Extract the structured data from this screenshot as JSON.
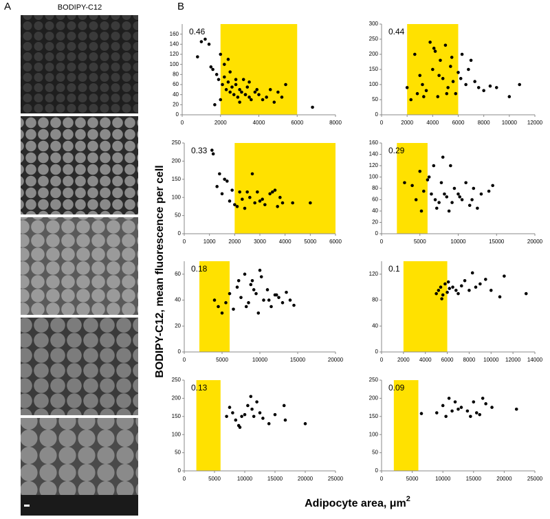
{
  "panel_labels": [
    "A",
    "B"
  ],
  "image_title": "BODIPY-C12",
  "y_label": "BODIPY-C12, mean fluorescence per cell",
  "x_label": "Adipocyte area, μm",
  "x_label_sup": "2",
  "chart_data": [
    {
      "type": "scatter",
      "annotation": "0.46",
      "color": "#000000",
      "highlight": [
        2000,
        6000
      ],
      "highlight_color": "#ffe100",
      "xlim": [
        0,
        8000
      ],
      "xticks": [
        0,
        2000,
        4000,
        6000,
        8000
      ],
      "ylim": [
        0,
        180
      ],
      "yticks": [
        0,
        20,
        40,
        60,
        80,
        100,
        120,
        140,
        160
      ],
      "x": [
        800,
        1000,
        1200,
        1400,
        1500,
        1600,
        1800,
        1900,
        2000,
        2100,
        2200,
        2300,
        2400,
        2500,
        2600,
        2700,
        2800,
        2900,
        3000,
        3100,
        3200,
        3300,
        3400,
        3500,
        3600,
        3800,
        4000,
        4200,
        4400,
        4600,
        4800,
        5000,
        5200,
        5400,
        6800,
        1700,
        2200,
        2500,
        3000,
        3500,
        2000,
        2400,
        2800,
        3300,
        3900
      ],
      "y": [
        115,
        145,
        150,
        140,
        95,
        90,
        80,
        70,
        120,
        60,
        75,
        50,
        65,
        45,
        55,
        40,
        60,
        35,
        50,
        45,
        70,
        40,
        55,
        35,
        30,
        45,
        40,
        30,
        35,
        50,
        25,
        45,
        35,
        60,
        15,
        20,
        100,
        85,
        25,
        65,
        30,
        110,
        70,
        40,
        50
      ]
    },
    {
      "type": "scatter",
      "annotation": "0.44",
      "color": "#000000",
      "highlight": [
        2000,
        6000
      ],
      "highlight_color": "#ffe100",
      "xlim": [
        0,
        12000
      ],
      "xticks": [
        0,
        2000,
        4000,
        6000,
        8000,
        10000,
        12000
      ],
      "ylim": [
        0,
        300
      ],
      "yticks": [
        0,
        50,
        100,
        150,
        200,
        250,
        300
      ],
      "x": [
        2000,
        2300,
        2600,
        2800,
        3000,
        3200,
        3500,
        3800,
        4000,
        4200,
        4400,
        4600,
        4800,
        5000,
        5200,
        5400,
        5600,
        5800,
        6000,
        6300,
        6600,
        7000,
        7300,
        7600,
        8000,
        8500,
        9000,
        10000,
        10800,
        3300,
        4100,
        4500,
        5100,
        5500,
        6200,
        6800
      ],
      "y": [
        90,
        50,
        200,
        70,
        130,
        100,
        80,
        240,
        150,
        210,
        60,
        180,
        120,
        230,
        90,
        160,
        110,
        70,
        140,
        200,
        100,
        180,
        110,
        90,
        80,
        95,
        90,
        60,
        100,
        60,
        220,
        130,
        70,
        190,
        120,
        150
      ]
    },
    {
      "type": "scatter",
      "annotation": "0.33",
      "color": "#000000",
      "highlight": [
        2000,
        6000
      ],
      "highlight_color": "#ffe100",
      "xlim": [
        0,
        6000
      ],
      "xticks": [
        0,
        1000,
        2000,
        3000,
        4000,
        5000,
        6000
      ],
      "ylim": [
        0,
        250
      ],
      "yticks": [
        0,
        50,
        100,
        150,
        200,
        250
      ],
      "x": [
        1100,
        1150,
        1300,
        1400,
        1500,
        1600,
        1700,
        1800,
        1900,
        2000,
        2100,
        2200,
        2300,
        2500,
        2600,
        2700,
        2800,
        2900,
        3000,
        3200,
        3400,
        3600,
        3700,
        3800,
        3900,
        4300,
        5000,
        2400,
        3100,
        3500
      ],
      "y": [
        230,
        220,
        130,
        165,
        110,
        150,
        145,
        90,
        120,
        80,
        75,
        115,
        95,
        115,
        100,
        165,
        85,
        115,
        90,
        80,
        110,
        120,
        75,
        100,
        85,
        85,
        85,
        70,
        95,
        115
      ]
    },
    {
      "type": "scatter",
      "annotation": "0.29",
      "color": "#000000",
      "highlight": [
        2000,
        6000
      ],
      "highlight_color": "#ffe100",
      "xlim": [
        0,
        20000
      ],
      "xticks": [
        0,
        5000,
        10000,
        15000,
        20000
      ],
      "ylim": [
        0,
        160
      ],
      "yticks": [
        0,
        20,
        40,
        60,
        80,
        100,
        120,
        140,
        160
      ],
      "x": [
        3000,
        4000,
        4500,
        5000,
        5500,
        6000,
        6500,
        7000,
        7500,
        8000,
        8500,
        9000,
        9500,
        10000,
        10500,
        11000,
        11500,
        12000,
        12500,
        13000,
        14000,
        14500,
        5200,
        6200,
        7200,
        8200,
        9200,
        10200,
        7800,
        8800,
        6800,
        11800
      ],
      "y": [
        90,
        85,
        60,
        110,
        75,
        95,
        70,
        60,
        55,
        135,
        65,
        120,
        80,
        70,
        60,
        90,
        50,
        80,
        45,
        70,
        75,
        85,
        40,
        100,
        45,
        70,
        55,
        65,
        90,
        40,
        120,
        60
      ]
    },
    {
      "type": "scatter",
      "annotation": "0.18",
      "color": "#000000",
      "highlight": [
        2000,
        6000
      ],
      "highlight_color": "#ffe100",
      "xlim": [
        0,
        20000
      ],
      "xticks": [
        0,
        5000,
        10000,
        15000,
        20000
      ],
      "ylim": [
        0,
        70
      ],
      "yticks": [
        0,
        20,
        40,
        60
      ],
      "x": [
        4000,
        4500,
        5000,
        5500,
        6000,
        7000,
        7500,
        8000,
        8500,
        9000,
        9500,
        10000,
        10500,
        11000,
        11500,
        12000,
        12500,
        13000,
        13500,
        14000,
        14500,
        7200,
        8200,
        9200,
        10200,
        11200,
        6500,
        8800,
        9800,
        12200
      ],
      "y": [
        40,
        35,
        30,
        38,
        45,
        50,
        42,
        60,
        38,
        55,
        45,
        63,
        40,
        48,
        35,
        44,
        42,
        38,
        46,
        40,
        36,
        55,
        35,
        48,
        58,
        40,
        33,
        52,
        30,
        44
      ]
    },
    {
      "type": "scatter",
      "annotation": "0.1",
      "color": "#000000",
      "highlight": [
        2000,
        6000
      ],
      "highlight_color": "#ffe100",
      "xlim": [
        0,
        14000
      ],
      "xticks": [
        0,
        2000,
        4000,
        6000,
        8000,
        10000,
        12000,
        14000
      ],
      "ylim": [
        0,
        140
      ],
      "yticks": [
        0,
        40,
        80,
        120
      ],
      "x": [
        5000,
        5200,
        5400,
        5600,
        5800,
        6000,
        6200,
        6500,
        6800,
        7000,
        7300,
        7600,
        8000,
        8300,
        8600,
        9000,
        9500,
        10000,
        10800,
        11200,
        13200,
        5500,
        6100
      ],
      "y": [
        90,
        95,
        100,
        88,
        105,
        92,
        98,
        100,
        95,
        90,
        102,
        110,
        95,
        122,
        100,
        105,
        112,
        95,
        85,
        117,
        90,
        82,
        108
      ]
    },
    {
      "type": "scatter",
      "annotation": "0.13",
      "color": "#000000",
      "highlight": [
        2000,
        6000
      ],
      "highlight_color": "#ffe100",
      "xlim": [
        0,
        25000
      ],
      "xticks": [
        0,
        5000,
        10000,
        15000,
        20000,
        25000
      ],
      "ylim": [
        0,
        250
      ],
      "yticks": [
        0,
        50,
        100,
        150,
        200,
        250
      ],
      "x": [
        7000,
        7500,
        8000,
        8500,
        9000,
        9500,
        10000,
        10500,
        11000,
        11500,
        12000,
        12500,
        13000,
        14000,
        15000,
        16500,
        16700,
        20000,
        9200,
        11200
      ],
      "y": [
        150,
        175,
        160,
        140,
        125,
        150,
        155,
        180,
        205,
        150,
        190,
        160,
        145,
        130,
        155,
        180,
        140,
        130,
        120,
        170
      ]
    },
    {
      "type": "scatter",
      "annotation": "0.09",
      "color": "#000000",
      "highlight": [
        2000,
        6000
      ],
      "highlight_color": "#ffe100",
      "xlim": [
        0,
        25000
      ],
      "xticks": [
        0,
        5000,
        10000,
        15000,
        20000,
        25000
      ],
      "ylim": [
        0,
        250
      ],
      "yticks": [
        0,
        50,
        100,
        150,
        200,
        250
      ],
      "x": [
        6500,
        9000,
        10000,
        10500,
        11000,
        11500,
        12000,
        13000,
        14000,
        14500,
        15000,
        15500,
        16000,
        16500,
        17000,
        18000,
        22000,
        12500
      ],
      "y": [
        158,
        160,
        180,
        150,
        200,
        165,
        190,
        175,
        165,
        150,
        190,
        160,
        155,
        200,
        185,
        175,
        170,
        170
      ]
    }
  ]
}
